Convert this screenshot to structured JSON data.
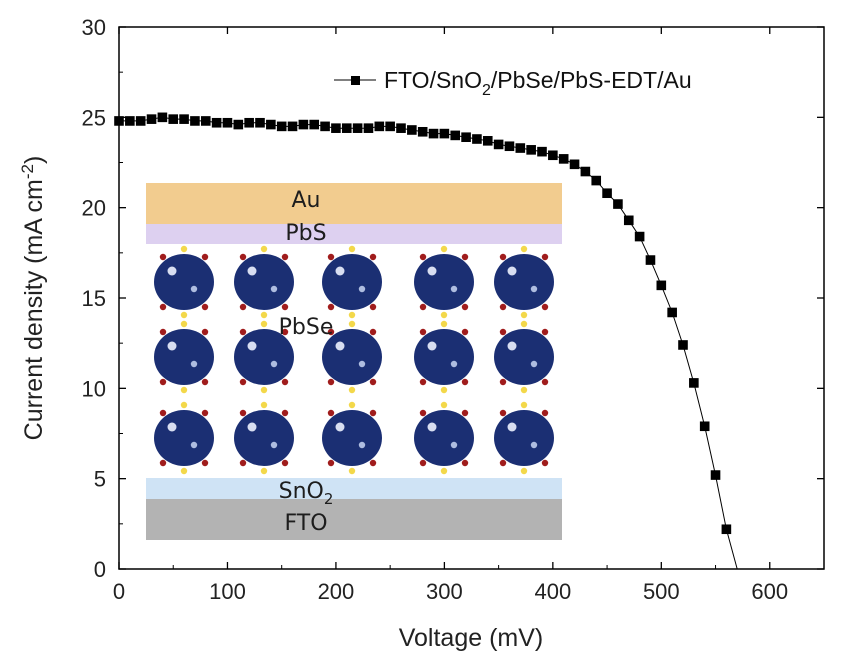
{
  "chart_data": {
    "type": "line",
    "title": "",
    "xlabel": "Voltage (mV)",
    "ylabel_main": "Current density (mA cm",
    "ylabel_sup": "-2",
    "ylabel_close": ")",
    "xlim": [
      0,
      650
    ],
    "ylim": [
      0,
      30
    ],
    "xticks": [
      0,
      100,
      200,
      300,
      400,
      500,
      600
    ],
    "yticks": [
      0,
      5,
      10,
      15,
      20,
      25,
      30
    ],
    "legend_position": "top-right",
    "series": [
      {
        "name": "FTO/SnO2/PbSe/PbS-EDT/Au",
        "legend_parts": {
          "before": "FTO/SnO",
          "sub": "2",
          "after": "/PbSe/PbS-EDT/Au"
        },
        "marker": "square",
        "color": "#000000",
        "x": [
          0,
          10,
          20,
          30,
          40,
          50,
          60,
          70,
          80,
          90,
          100,
          110,
          120,
          130,
          140,
          150,
          160,
          170,
          180,
          190,
          200,
          210,
          220,
          230,
          240,
          250,
          260,
          270,
          280,
          290,
          300,
          310,
          320,
          330,
          340,
          350,
          360,
          370,
          380,
          390,
          400,
          410,
          420,
          430,
          440,
          450,
          460,
          470,
          480,
          490,
          500,
          510,
          520,
          530,
          540,
          550,
          560,
          570
        ],
        "y": [
          24.8,
          24.8,
          24.8,
          24.9,
          25.0,
          24.9,
          24.9,
          24.8,
          24.8,
          24.7,
          24.7,
          24.6,
          24.7,
          24.7,
          24.6,
          24.5,
          24.5,
          24.6,
          24.6,
          24.5,
          24.4,
          24.4,
          24.4,
          24.4,
          24.5,
          24.5,
          24.4,
          24.3,
          24.2,
          24.1,
          24.1,
          24.0,
          23.9,
          23.8,
          23.7,
          23.5,
          23.4,
          23.3,
          23.2,
          23.1,
          22.9,
          22.7,
          22.4,
          22.0,
          21.5,
          20.8,
          20.2,
          19.3,
          18.4,
          17.1,
          15.7,
          14.2,
          12.4,
          10.3,
          7.9,
          5.2,
          2.2,
          0.0
        ]
      }
    ],
    "inset": {
      "layers": {
        "top": "Au",
        "second": "PbS",
        "middle": "PbSe",
        "bottom1_main": "SnO",
        "bottom1_sub": "2",
        "bottom2": "FTO"
      },
      "colors": {
        "au": "#f2cc8f",
        "pbs": "#ddd0f0",
        "sno2": "#cfe3f5",
        "fto": "#b3b3b3",
        "dot": "#1b2f73",
        "ligand_yellow": "#f3d84a",
        "ligand_red": "#a01c1c"
      }
    }
  }
}
